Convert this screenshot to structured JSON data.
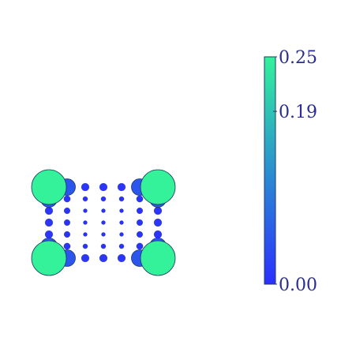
{
  "chart_data": {
    "type": "scatter",
    "title": "",
    "xlabel": "",
    "ylabel": "",
    "grid": false,
    "xlim": [
      0,
      7
    ],
    "ylim": [
      0,
      7
    ],
    "size_encoding": "value",
    "color_encoding": "value",
    "points": [
      {
        "x": 0,
        "y": 0,
        "value": 0.25
      },
      {
        "x": 1,
        "y": 0,
        "value": 0.05
      },
      {
        "x": 2,
        "y": 0,
        "value": 0.008
      },
      {
        "x": 3,
        "y": 0,
        "value": 0.008
      },
      {
        "x": 4,
        "y": 0,
        "value": 0.008
      },
      {
        "x": 5,
        "y": 0,
        "value": 0.05
      },
      {
        "x": 6,
        "y": 0,
        "value": 0.25
      },
      {
        "x": 0,
        "y": 1,
        "value": 0.05
      },
      {
        "x": 1,
        "y": 1,
        "value": 0.005
      },
      {
        "x": 2,
        "y": 1,
        "value": 0.002
      },
      {
        "x": 3,
        "y": 1,
        "value": 0.002
      },
      {
        "x": 4,
        "y": 1,
        "value": 0.002
      },
      {
        "x": 5,
        "y": 1,
        "value": 0.005
      },
      {
        "x": 6,
        "y": 1,
        "value": 0.05
      },
      {
        "x": 0,
        "y": 2,
        "value": 0.008
      },
      {
        "x": 1,
        "y": 2,
        "value": 0.004
      },
      {
        "x": 2,
        "y": 2,
        "value": 0.001
      },
      {
        "x": 3,
        "y": 2,
        "value": 0.001
      },
      {
        "x": 4,
        "y": 2,
        "value": 0.001
      },
      {
        "x": 5,
        "y": 2,
        "value": 0.004
      },
      {
        "x": 6,
        "y": 2,
        "value": 0.008
      },
      {
        "x": 0,
        "y": 3,
        "value": 0.008
      },
      {
        "x": 1,
        "y": 3,
        "value": 0.004
      },
      {
        "x": 2,
        "y": 3,
        "value": 0.001
      },
      {
        "x": 3,
        "y": 3,
        "value": 0.001
      },
      {
        "x": 4,
        "y": 3,
        "value": 0.001
      },
      {
        "x": 5,
        "y": 3,
        "value": 0.004
      },
      {
        "x": 6,
        "y": 3,
        "value": 0.008
      },
      {
        "x": 0,
        "y": 4,
        "value": 0.008
      },
      {
        "x": 1,
        "y": 4,
        "value": 0.004
      },
      {
        "x": 2,
        "y": 4,
        "value": 0.001
      },
      {
        "x": 3,
        "y": 4,
        "value": 0.001
      },
      {
        "x": 4,
        "y": 4,
        "value": 0.001
      },
      {
        "x": 5,
        "y": 4,
        "value": 0.004
      },
      {
        "x": 6,
        "y": 4,
        "value": 0.008
      },
      {
        "x": 0,
        "y": 5,
        "value": 0.05
      },
      {
        "x": 1,
        "y": 5,
        "value": 0.005
      },
      {
        "x": 2,
        "y": 5,
        "value": 0.002
      },
      {
        "x": 3,
        "y": 5,
        "value": 0.002
      },
      {
        "x": 4,
        "y": 5,
        "value": 0.002
      },
      {
        "x": 5,
        "y": 5,
        "value": 0.005
      },
      {
        "x": 6,
        "y": 5,
        "value": 0.05
      },
      {
        "x": 0,
        "y": 6,
        "value": 0.25
      },
      {
        "x": 1,
        "y": 6,
        "value": 0.05
      },
      {
        "x": 2,
        "y": 6,
        "value": 0.008
      },
      {
        "x": 3,
        "y": 6,
        "value": 0.008
      },
      {
        "x": 4,
        "y": 6,
        "value": 0.008
      },
      {
        "x": 5,
        "y": 6,
        "value": 0.05
      },
      {
        "x": 6,
        "y": 6,
        "value": 0.25
      }
    ],
    "colorbar": {
      "min": 0.0,
      "max": 0.25,
      "colors": [
        "#2b2fff",
        "#2b8fd0",
        "#33f29a"
      ],
      "ticks": [
        {
          "value": 0.0,
          "label": "0.00"
        },
        {
          "value": 0.19,
          "label": "0.19"
        },
        {
          "value": 0.25,
          "label": "0.25"
        }
      ]
    },
    "marker_outline": "#1f3a66"
  }
}
